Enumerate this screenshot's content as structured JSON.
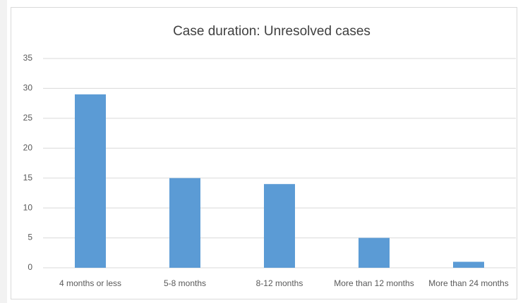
{
  "chart_data": {
    "type": "bar",
    "title": "Case duration: Unresolved cases",
    "categories": [
      "4 months or less",
      "5-8 months",
      "8-12 months",
      "More than 12 months",
      "More than 24 months"
    ],
    "values": [
      29,
      15,
      14,
      5,
      1
    ],
    "color": "#5b9bd5",
    "ylim": [
      0,
      35
    ],
    "yticks": [
      0,
      5,
      10,
      15,
      20,
      25,
      30,
      35
    ],
    "grid": true
  }
}
